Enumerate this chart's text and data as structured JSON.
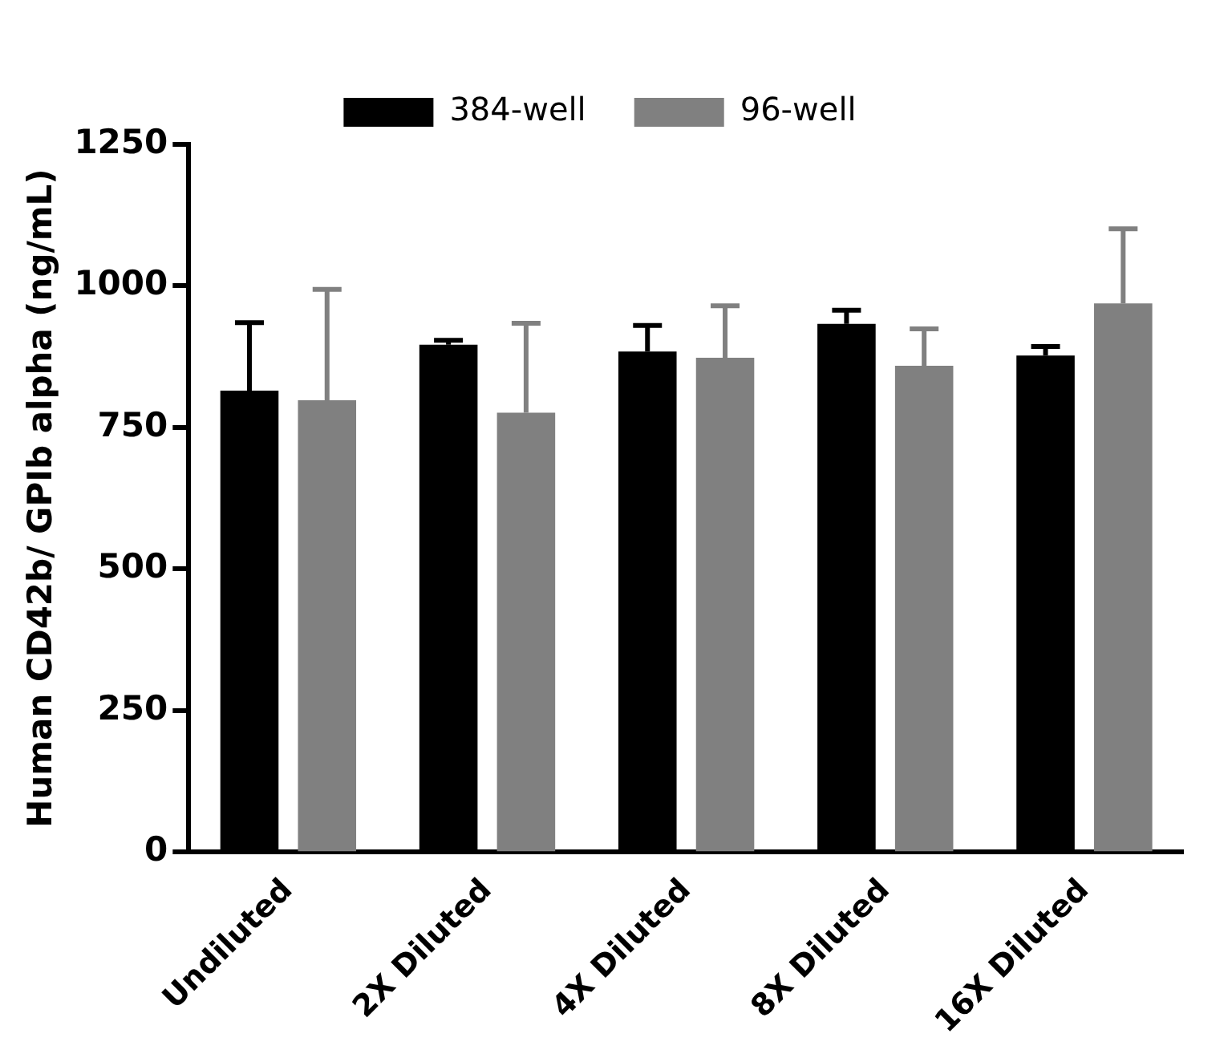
{
  "chart_data": {
    "type": "bar",
    "ylabel": "Human CD42b/ GPIb alpha (ng/mL)",
    "categories": [
      "Undiluted",
      "2X Diluted",
      "4X Diluted",
      "8X Diluted",
      "16X Diluted"
    ],
    "series": [
      {
        "name": "384-well",
        "color": "#000000",
        "values": [
          815,
          896,
          884,
          933,
          877
        ],
        "errors": [
          [
            815,
            935
          ],
          [
            896,
            904
          ],
          [
            884,
            930
          ],
          [
            933,
            957
          ],
          [
            877,
            893
          ]
        ]
      },
      {
        "name": "96-well",
        "color": "#808080",
        "values": [
          798,
          776,
          873,
          859,
          969
        ],
        "errors": [
          [
            798,
            994
          ],
          [
            776,
            934
          ],
          [
            873,
            965
          ],
          [
            859,
            924
          ],
          [
            969,
            1101
          ]
        ]
      }
    ],
    "ylim": [
      0,
      1250
    ],
    "yticks": [
      0,
      250,
      500,
      750,
      1000,
      1250
    ],
    "grid": false,
    "legend": "top"
  }
}
